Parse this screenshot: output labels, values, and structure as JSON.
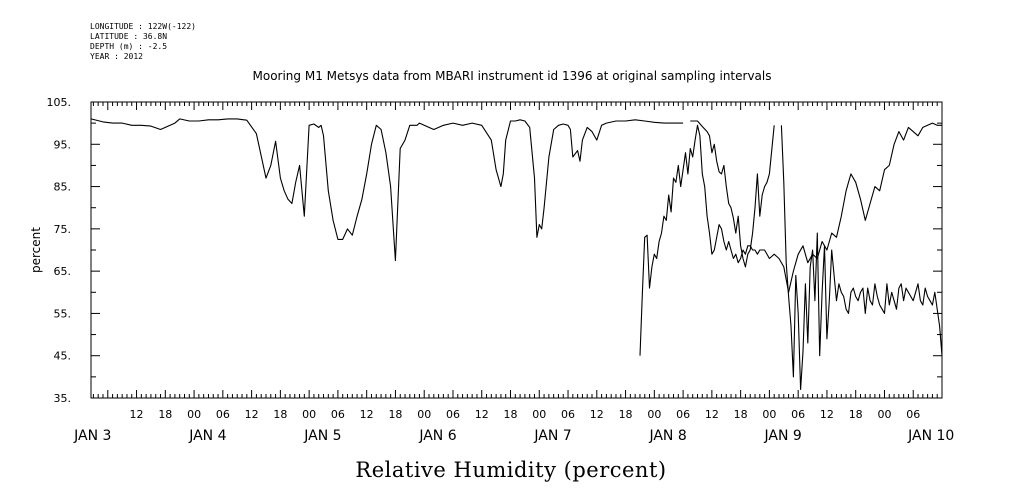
{
  "meta": {
    "longitude": "LONGITUDE : 122W(-122)",
    "latitude": "LATITUDE : 36.8N",
    "depth": "DEPTH (m) : -2.5",
    "year": "YEAR : 2012"
  },
  "chart_data": {
    "type": "line",
    "title": "Mooring M1 Metsys data from MBARI instrument id 1396 at original sampling intervals",
    "xlabel": "Relative Humidity (percent)",
    "ylabel": "percent",
    "ylim": [
      35,
      105
    ],
    "xlim_hours": [
      -3.5,
      174
    ],
    "y_ticks": [
      "35.",
      "45.",
      "55.",
      "65.",
      "75.",
      "85.",
      "95.",
      "105."
    ],
    "x_hour_ticks": [
      "12",
      "18",
      "00",
      "06",
      "12",
      "18",
      "00",
      "06",
      "12",
      "18",
      "00",
      "06",
      "12",
      "18",
      "00",
      "06",
      "12",
      "18",
      "00",
      "06",
      "12",
      "18",
      "00",
      "06",
      "12",
      "18",
      "00",
      "06"
    ],
    "x_day_labels": [
      "JAN 3",
      "JAN 4",
      "JAN 5",
      "JAN 6",
      "JAN 7",
      "JAN 8",
      "JAN 9",
      "JAN 10"
    ],
    "grid": false,
    "segments": [
      {
        "x": [
          -3.5,
          -1,
          1,
          3,
          5,
          7,
          9,
          11,
          13,
          14,
          15,
          17,
          19,
          21,
          23,
          25,
          27,
          29,
          31,
          33,
          34,
          35,
          36,
          36.8,
          37.6,
          38.4,
          39.2,
          40,
          41,
          42,
          43,
          44,
          44.5,
          45,
          46,
          47,
          48,
          49,
          50,
          51,
          52,
          53,
          54,
          55,
          56,
          57,
          58,
          59,
          60,
          61,
          62,
          63,
          64,
          64.5,
          65,
          66,
          68,
          70,
          72,
          74,
          76,
          78,
          80,
          81,
          82,
          82.5,
          83,
          84,
          85,
          86,
          87,
          88,
          89,
          89.5,
          90,
          90.5,
          91,
          92,
          93,
          94,
          95,
          96,
          96.5,
          97,
          98,
          98.5,
          99,
          100,
          101,
          102,
          103,
          104,
          106,
          108,
          110,
          112,
          114,
          116,
          118,
          120
        ],
        "y": [
          101,
          100.3,
          100,
          100,
          99.5,
          99.5,
          99.3,
          98.5,
          99.5,
          100,
          101,
          100.5,
          100.5,
          100.8,
          100.8,
          101,
          101,
          100.7,
          97.5,
          87,
          90,
          95.7,
          87,
          84,
          82,
          81,
          86,
          90,
          78,
          99.5,
          99.8,
          99,
          99.5,
          97,
          84,
          77,
          72.5,
          72.5,
          75,
          73.5,
          78,
          82,
          88,
          95,
          99.5,
          98.5,
          93,
          85,
          67.5,
          94,
          96,
          99.5,
          99.5,
          99.5,
          100,
          99.5,
          98.5,
          99.5,
          100,
          99.5,
          100,
          99.5,
          96,
          89,
          85,
          88,
          96,
          100.5,
          100.5,
          100.8,
          100.5,
          99,
          87,
          73,
          76,
          75,
          80,
          92,
          98.5,
          99.5,
          99.8,
          99.5,
          98.5,
          92,
          93.5,
          91,
          96,
          99,
          98,
          96,
          99.5,
          100,
          100.5,
          100.5,
          100.8,
          100.5,
          100.2,
          100,
          100,
          100
        ]
      },
      {
        "x": [
          121.5,
          123,
          124,
          125,
          125.5,
          126,
          126.5,
          127,
          127.5,
          128,
          128.5,
          129,
          129.5,
          130,
          130.5,
          131,
          131.5,
          132,
          132.5,
          133,
          133.5,
          134,
          134.5,
          135,
          135.5,
          136,
          136.5,
          137,
          137.5,
          138,
          139
        ],
        "y": [
          100.5,
          100.5,
          99.2,
          98,
          97,
          93,
          95,
          91,
          88.5,
          88,
          90,
          85,
          81,
          80,
          77.5,
          74,
          78,
          71,
          68,
          66,
          69,
          70,
          74,
          80,
          88,
          78,
          83,
          85,
          86,
          88,
          99.5
        ]
      },
      {
        "x": [
          140.5,
          141,
          141.5,
          142,
          142.5,
          143,
          143.5,
          144,
          144.5,
          145,
          145.5,
          146,
          146.5,
          147,
          147.5,
          148,
          148.5,
          149,
          149.5,
          150,
          150.5,
          151,
          151.5,
          152,
          152.5,
          153,
          153.5,
          154,
          154.5,
          155,
          155.5,
          156,
          156.5,
          157,
          157.5,
          158,
          158.5,
          159,
          159.5,
          160,
          160.5,
          161,
          161.5,
          162,
          162.5,
          163,
          163.5,
          164,
          164.5,
          165,
          165.5,
          166,
          166.5,
          167,
          167.5,
          168,
          168.5,
          169,
          169.5,
          170,
          170.5,
          171,
          171.5,
          172,
          172.5,
          173,
          173.5,
          174
        ],
        "y": [
          99.5,
          86,
          67,
          59,
          52,
          40,
          64,
          55,
          37,
          46,
          62,
          48,
          66,
          70,
          58,
          74,
          45,
          60,
          71,
          49,
          58,
          70,
          64,
          58,
          62,
          60,
          59,
          56,
          55,
          60,
          61,
          59,
          58,
          60,
          61,
          55,
          61,
          58,
          57,
          62,
          59,
          57,
          56,
          55,
          62,
          57,
          60,
          58,
          56,
          61,
          62,
          58,
          61,
          60,
          59,
          58,
          60,
          62,
          58,
          57,
          61,
          59,
          58,
          57,
          60,
          56,
          52,
          45
        ]
      },
      {
        "x": [
          111,
          111.5,
          112,
          112.5,
          113,
          113.5,
          114,
          114.5,
          115,
          115.5,
          116,
          116.5,
          117,
          117.5,
          118,
          118.5,
          119,
          119.5,
          120,
          120.5,
          121,
          121.5,
          122,
          122.5,
          123,
          123.5,
          124,
          124.5,
          125,
          125.5,
          126,
          126.5,
          127,
          127.5,
          128,
          128.5,
          129,
          129.5,
          130,
          130.5,
          131,
          131.5,
          132,
          132.5,
          133,
          133.5,
          134,
          134.5,
          135,
          135.5,
          136,
          137,
          138,
          139,
          140,
          141,
          142,
          143,
          144,
          145,
          146,
          147,
          148,
          149,
          150,
          151,
          152,
          153,
          154,
          155,
          156,
          157,
          158,
          159,
          160,
          161,
          162,
          163,
          164,
          165,
          166,
          167,
          168,
          169,
          170,
          171,
          172,
          173,
          174
        ],
        "y": [
          45,
          60,
          73,
          73.5,
          61,
          66,
          69,
          68,
          72,
          74,
          78,
          77,
          83,
          79,
          87,
          86,
          90,
          85,
          89,
          93,
          88,
          94,
          92,
          96,
          99.5,
          97,
          88,
          85,
          78,
          74,
          69,
          70,
          73,
          76,
          75,
          72,
          70,
          72,
          70,
          68,
          69,
          67,
          68,
          70,
          69,
          71,
          71,
          70,
          70,
          69,
          70,
          70,
          68,
          69,
          68,
          66,
          60,
          65,
          69,
          71,
          67,
          69,
          68,
          72,
          70,
          74,
          73,
          78,
          84,
          88,
          86,
          82,
          77,
          81,
          85,
          84,
          89,
          90,
          95,
          98,
          96,
          99,
          98,
          97,
          99,
          99.5,
          100,
          99.5,
          99.5
        ]
      }
    ]
  }
}
